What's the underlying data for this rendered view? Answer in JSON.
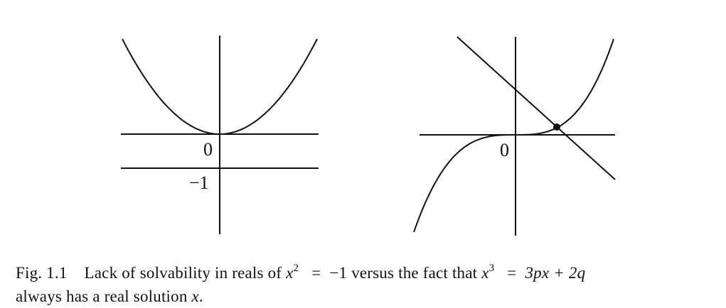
{
  "figure": {
    "left_panel": {
      "tick_zero": "0",
      "tick_minus_one": "−1"
    },
    "right_panel": {
      "tick_zero": "0"
    }
  },
  "caption": {
    "label": "Fig. 1.1",
    "text_a": "Lack of solvability in reals of",
    "eq1_lhs": "x",
    "eq1_exp": "2",
    "eq1_eq": "=",
    "eq1_rhs": "−1",
    "text_b": "versus the fact that",
    "eq2_lhs": "x",
    "eq2_exp": "3",
    "eq2_eq": "=",
    "eq2_rhs": "3px + 2q",
    "line2_text": "always has a real solution",
    "line2_var": "x",
    "line2_end": "."
  },
  "colors": {
    "ink": "#111111",
    "background": "#ffffff"
  }
}
